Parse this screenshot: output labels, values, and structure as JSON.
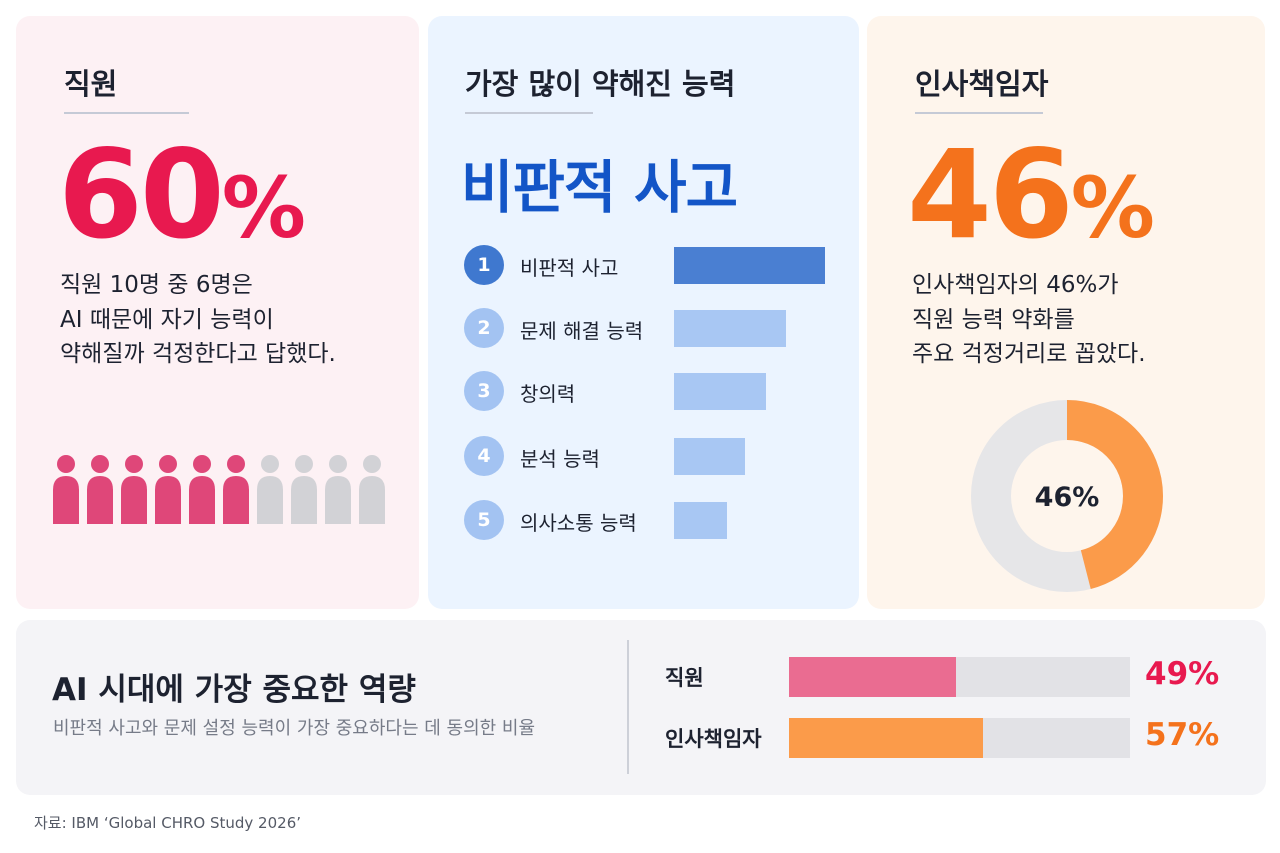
{
  "colors": {
    "pink": "#e8194f",
    "pink_icon": "#df4779",
    "pink_bar": "#ea6c91",
    "grey_icon": "#d2d2d6",
    "blue_title": "#1355c7",
    "rank_dark": "#3f78cf",
    "rank_light": "#a3c3f2",
    "bar_dark": "#4a7fd2",
    "bar_light": "#a8c7f3",
    "orange": "#f4721c",
    "orange_bar": "#fb9b4a",
    "donut_grey": "#e6e6e8"
  },
  "employee": {
    "title": "직원",
    "percent_number": "60",
    "percent_sign": "%",
    "desc_lines": [
      "직원 10명 중 6명은",
      "AI 때문에 자기 능력이",
      "약해질까 걱정한다고 답했다."
    ],
    "icon_total": 10,
    "icon_highlighted": 6
  },
  "skill": {
    "title": "가장 많이 약해진 능력",
    "headline": "비판적 사고",
    "items": [
      {
        "rank": "1",
        "label": "비판적 사고",
        "value": 100
      },
      {
        "rank": "2",
        "label": "문제 해결 능력",
        "value": 74
      },
      {
        "rank": "3",
        "label": "창의력",
        "value": 61
      },
      {
        "rank": "4",
        "label": "분석 능력",
        "value": 47
      },
      {
        "rank": "5",
        "label": "의사소통 능력",
        "value": 35
      }
    ]
  },
  "chro": {
    "title": "인사책임자",
    "percent_number": "46",
    "percent_sign": "%",
    "desc_lines": [
      "인사책임자의 46%가",
      "직원 능력 약화를",
      "주요 걱정거리로 꼽았다."
    ],
    "donut_label": "46%"
  },
  "bottom": {
    "title": "AI 시대에 가장 중요한 역량",
    "subtitle": "비판적 사고와 문제 설정 능력이 가장 중요하다는 데 동의한 비율"
  },
  "source": "자료: IBM ‘Global CHRO Study 2026’",
  "chart_data": [
    {
      "type": "pie",
      "title": "직원",
      "values": [
        60,
        40
      ],
      "highlight": "60%"
    },
    {
      "type": "bar",
      "title": "가장 많이 약해진 능력",
      "categories": [
        "비판적 사고",
        "문제 해결 능력",
        "창의력",
        "분석 능력",
        "의사소통 능력"
      ],
      "values": [
        100,
        74,
        61,
        47,
        35
      ]
    },
    {
      "type": "pie",
      "title": "인사책임자",
      "values": [
        46,
        54
      ],
      "center_label": "46%"
    },
    {
      "type": "bar",
      "title": "AI 시대에 가장 중요한 역량",
      "categories": [
        "직원",
        "인사책임자"
      ],
      "values": [
        49,
        57
      ],
      "value_labels": [
        "49%",
        "57%"
      ],
      "ylim": [
        0,
        100
      ]
    }
  ]
}
